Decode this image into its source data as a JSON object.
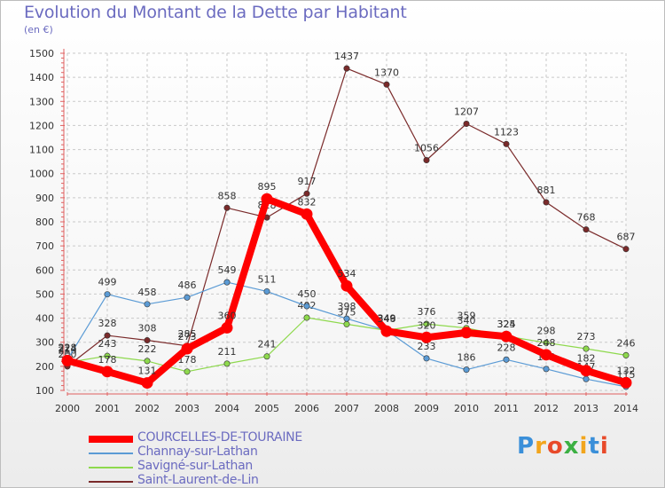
{
  "header": {
    "title": "Evolution du Montant de la Dette par Habitant",
    "subtitle": "(en €)"
  },
  "logo": {
    "text": "Proxiti",
    "colors": [
      "#3a8fd9",
      "#f2a51c",
      "#e84a2a",
      "#3cb043",
      "#f2a51c",
      "#3a8fd9",
      "#e84a2a"
    ]
  },
  "chart_data": {
    "type": "line",
    "x": [
      2000,
      2001,
      2002,
      2003,
      2004,
      2005,
      2006,
      2007,
      2008,
      2009,
      2010,
      2011,
      2012,
      2013,
      2014
    ],
    "x_tick_labels": [
      "2000",
      "2001",
      "2002",
      "2003",
      "2004",
      "2005",
      "2006",
      "2007",
      "2008",
      "2009",
      "2010",
      "2011",
      "2012",
      "2013",
      "2014"
    ],
    "ylim": [
      100,
      1500
    ],
    "yticks": [
      100,
      200,
      300,
      400,
      500,
      600,
      700,
      800,
      900,
      1000,
      1100,
      1200,
      1300,
      1400,
      1500
    ],
    "grid": true,
    "legend_position": "bottom-left",
    "series": [
      {
        "name": "Saint-Laurent-de-Lin",
        "color": "#7a2a2a",
        "values": [
          200,
          328,
          308,
          285,
          858,
          818,
          917,
          1437,
          1370,
          1056,
          1207,
          1123,
          881,
          768,
          687
        ]
      },
      {
        "name": "Savigné-sur-Lathan",
        "color": "#8ed94d",
        "values": [
          216,
          243,
          222,
          178,
          211,
          241,
          402,
          375,
          349,
          376,
          359,
          325,
          298,
          273,
          246
        ]
      },
      {
        "name": "Channay-sur-Lathan",
        "color": "#5b9bd5",
        "values": [
          228,
          499,
          458,
          486,
          549,
          511,
          450,
          398,
          349,
          233,
          186,
          228,
          189,
          147,
          115
        ]
      },
      {
        "name": "COURCELLES-DE-TOURAINE",
        "color": "#ff0000",
        "values": [
          224,
          178,
          131,
          273,
          360,
          895,
          832,
          534,
          346,
          320,
          340,
          324,
          248,
          182,
          132
        ]
      }
    ],
    "legend_order": [
      "COURCELLES-DE-TOURAINE",
      "Channay-sur-Lathan",
      "Savigné-sur-Lathan",
      "Saint-Laurent-de-Lin"
    ]
  }
}
